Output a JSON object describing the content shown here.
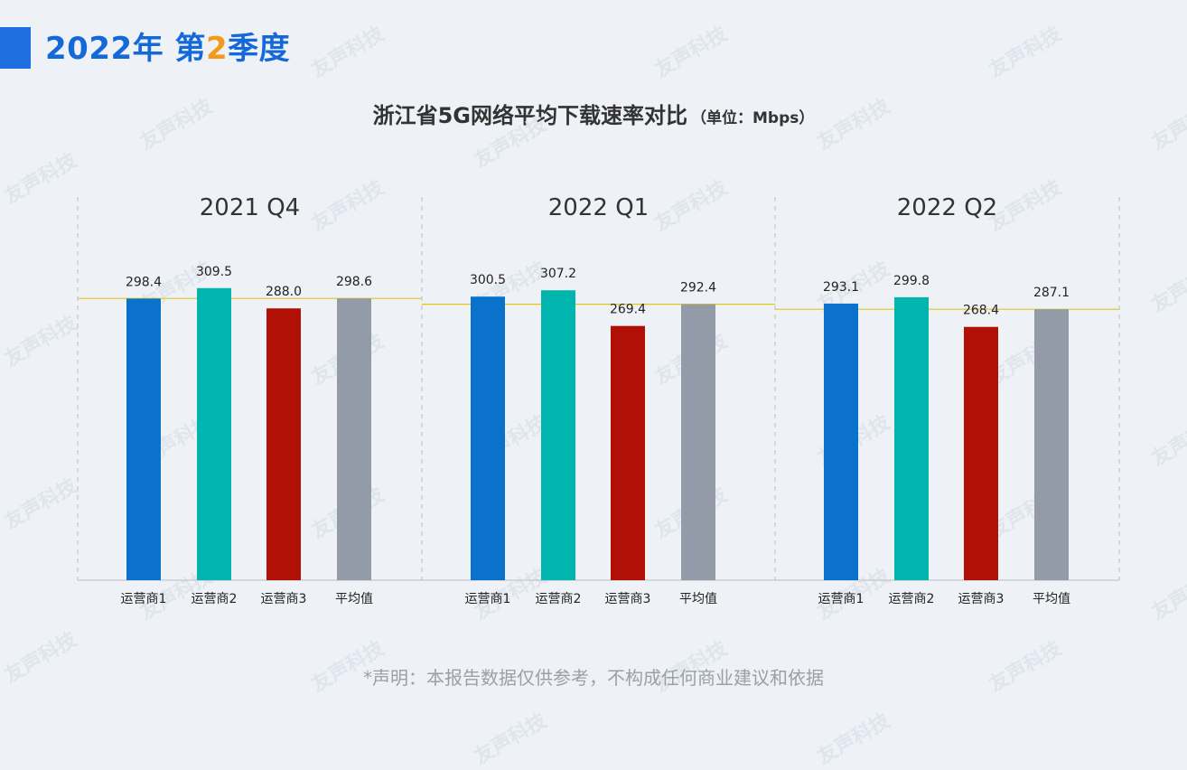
{
  "header": {
    "year_label": "2022年",
    "quarter_prefix": "第",
    "quarter_number": "2",
    "quarter_suffix": "季度"
  },
  "title": {
    "main": "浙江省5G网络平均下载速率对比",
    "unit": "（单位：Mbps）"
  },
  "disclaimer": "*声明：本报告数据仅供参考，不构成任何商业建议和依据",
  "watermark": "友声科技",
  "colors": {
    "accent": "#1f6fe0",
    "title_blue": "#1468d8",
    "quarter_orange": "#f29a1c",
    "operator1": "#0a72cc",
    "operator2": "#00b5ad",
    "operator3": "#b01005",
    "average": "#949ba8",
    "average_line": "#e3c51a"
  },
  "chart_data": {
    "type": "bar",
    "categories": [
      "运营商1",
      "运营商2",
      "运营商3",
      "平均值"
    ],
    "ylim": [
      0,
      330
    ],
    "grid": false,
    "panels": [
      {
        "name": "2021 Q4",
        "values": [
          298.4,
          309.5,
          288.0,
          298.6
        ],
        "labels": [
          "298.4",
          "309.5",
          "288.0",
          "298.6"
        ]
      },
      {
        "name": "2022 Q1",
        "values": [
          300.5,
          307.2,
          269.4,
          292.4
        ],
        "labels": [
          "300.5",
          "307.2",
          "269.4",
          "292.4"
        ]
      },
      {
        "name": "2022 Q2",
        "values": [
          293.1,
          299.8,
          268.4,
          287.1
        ],
        "labels": [
          "293.1",
          "299.8",
          "268.4",
          "287.1"
        ]
      }
    ]
  }
}
